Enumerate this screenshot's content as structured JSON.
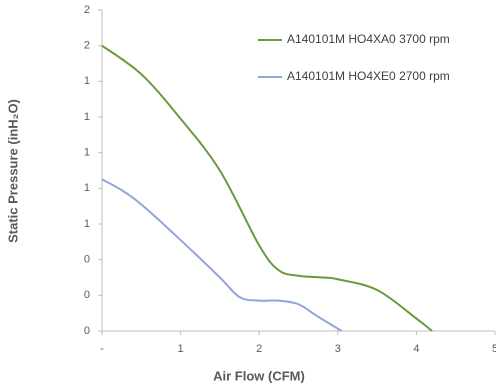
{
  "chart_data": {
    "type": "line",
    "x_label": "Air Flow (CFM)",
    "y_label": "Static Pressure (inH₂O)",
    "xlim": [
      0,
      5
    ],
    "xticks": [
      {
        "value": 0,
        "label": "-"
      },
      1,
      2,
      3,
      4,
      5
    ],
    "ylim": [
      0,
      1.8
    ],
    "yticks": [
      {
        "value": 0,
        "label": "0"
      },
      {
        "value": 0.2,
        "label": "0"
      },
      {
        "value": 0.4,
        "label": "0"
      },
      {
        "value": 0.6,
        "label": "1"
      },
      {
        "value": 0.8,
        "label": "1"
      },
      {
        "value": 1.0,
        "label": "1"
      },
      {
        "value": 1.2,
        "label": "1"
      },
      {
        "value": 1.4,
        "label": "1"
      },
      {
        "value": 1.6,
        "label": "2"
      },
      {
        "value": 1.8,
        "label": "2"
      }
    ],
    "grid": false,
    "legend": "upper right",
    "series": [
      {
        "name": "A140101M HO4XA0 3700 rpm",
        "color": "#6a9a3a",
        "x": [
          0,
          0.5,
          1,
          1.5,
          2,
          2.25,
          2.5,
          2.8,
          3,
          3.5,
          4,
          4.2
        ],
        "values": [
          1.6,
          1.44,
          1.19,
          0.9,
          0.48,
          0.34,
          0.31,
          0.3,
          0.29,
          0.23,
          0.07,
          0
        ]
      },
      {
        "name": "A140101M HO4XE0 2700 rpm",
        "color": "#8fa6d8",
        "x": [
          0,
          0.25,
          0.5,
          1,
          1.5,
          1.75,
          2,
          2.25,
          2.5,
          2.75,
          3.05
        ],
        "values": [
          0.85,
          0.79,
          0.71,
          0.51,
          0.3,
          0.19,
          0.17,
          0.17,
          0.15,
          0.08,
          0
        ]
      }
    ]
  }
}
